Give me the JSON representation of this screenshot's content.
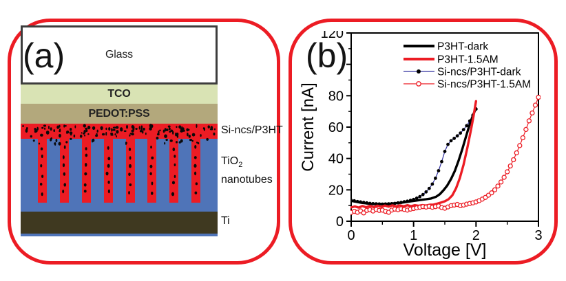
{
  "figure": {
    "background": "#ffffff",
    "frame_color": "#ec1c24"
  },
  "panel_a": {
    "label": "(a)",
    "layers": {
      "glass": "Glass",
      "tco": "TCO",
      "pedot": "PEDOT:PSS"
    },
    "side_labels": {
      "sincs": "Si-ncs/P3HT",
      "tio2_main": "TiO",
      "tio2_sub": "2",
      "nanotubes": "nanotubes",
      "ti": "Ti"
    },
    "colors": {
      "glass": "#ffffff",
      "glass_border": "#3d3d3d",
      "tco": "#d9e3b4",
      "pedot": "#b3a87c",
      "sincs_red": "#ec1c24",
      "tio2_blue": "#4f74b8",
      "ti_dark": "#3f3920",
      "dot_black": "#0a0a0a"
    }
  },
  "panel_b": {
    "label": "(b)"
  },
  "chart_data": {
    "type": "line",
    "title": "",
    "xlabel": "Voltage [V]",
    "ylabel": "Current [nA]",
    "xlim": [
      0,
      3
    ],
    "ylim": [
      0,
      120
    ],
    "x_ticks": [
      0,
      1,
      2,
      3
    ],
    "x_minor_ticks": [
      0.5,
      1.5,
      2.5
    ],
    "y_ticks": [
      0,
      20,
      40,
      60,
      80,
      100,
      120
    ],
    "y_minor_ticks": [
      10,
      30,
      50,
      70,
      90,
      110
    ],
    "y_tick_labels_visible": [
      0,
      20,
      40,
      60,
      80,
      120
    ],
    "y_label_hidden": 100,
    "y_label_clipped_top": 120,
    "grid": false,
    "legend_position": "top-right-inside",
    "axis_color": "#000000",
    "series": [
      {
        "name": "P3HT-dark",
        "style": "line",
        "color": "#000000",
        "width": 3.4,
        "points": [
          [
            0,
            13.0
          ],
          [
            0.08,
            12.4
          ],
          [
            0.16,
            11.8
          ],
          [
            0.24,
            11.4
          ],
          [
            0.32,
            11.1
          ],
          [
            0.4,
            10.9
          ],
          [
            0.48,
            11.0
          ],
          [
            0.56,
            11.0
          ],
          [
            0.64,
            11.2
          ],
          [
            0.72,
            11.5
          ],
          [
            0.8,
            11.8
          ],
          [
            0.88,
            12.2
          ],
          [
            0.96,
            12.7
          ],
          [
            1.04,
            13.2
          ],
          [
            1.12,
            13.6
          ],
          [
            1.2,
            14.0
          ],
          [
            1.28,
            14.5
          ],
          [
            1.36,
            15.6
          ],
          [
            1.42,
            17.2
          ],
          [
            1.48,
            19.8
          ],
          [
            1.54,
            22.8
          ],
          [
            1.6,
            27.0
          ],
          [
            1.66,
            32.0
          ],
          [
            1.72,
            38.5
          ],
          [
            1.78,
            46.0
          ],
          [
            1.84,
            54.0
          ],
          [
            1.9,
            62.0
          ],
          [
            1.95,
            67.5
          ],
          [
            2.0,
            72.0
          ]
        ]
      },
      {
        "name": "P3HT-1.5AM",
        "style": "line",
        "color": "#ec1c24",
        "width": 3.4,
        "points": [
          [
            0,
            8.8
          ],
          [
            0.06,
            9.4
          ],
          [
            0.12,
            8.7
          ],
          [
            0.18,
            9.7
          ],
          [
            0.24,
            8.9
          ],
          [
            0.3,
            9.8
          ],
          [
            0.36,
            9.0
          ],
          [
            0.42,
            9.9
          ],
          [
            0.48,
            9.2
          ],
          [
            0.54,
            10.0
          ],
          [
            0.6,
            9.3
          ],
          [
            0.66,
            10.1
          ],
          [
            0.72,
            9.4
          ],
          [
            0.78,
            10.1
          ],
          [
            0.84,
            9.5
          ],
          [
            0.9,
            10.2
          ],
          [
            0.96,
            9.6
          ],
          [
            1.02,
            10.2
          ],
          [
            1.08,
            9.8
          ],
          [
            1.14,
            10.3
          ],
          [
            1.2,
            10.0
          ],
          [
            1.26,
            10.5
          ],
          [
            1.32,
            10.6
          ],
          [
            1.38,
            11.2
          ],
          [
            1.44,
            11.9
          ],
          [
            1.5,
            12.7
          ],
          [
            1.56,
            14.0
          ],
          [
            1.62,
            16.5
          ],
          [
            1.68,
            21.0
          ],
          [
            1.74,
            27.5
          ],
          [
            1.8,
            36.0
          ],
          [
            1.86,
            46.5
          ],
          [
            1.92,
            58.5
          ],
          [
            1.96,
            67.0
          ],
          [
            2.0,
            76.5
          ]
        ]
      },
      {
        "name": "Si-ncs/P3HT-dark",
        "style": "line+marker",
        "marker": "filled-circle",
        "color": "#2e2e9e",
        "marker_color": "#000000",
        "width": 1.2,
        "marker_r": 2.4,
        "points": [
          [
            0,
            13.4
          ],
          [
            0.05,
            13.0
          ],
          [
            0.1,
            12.6
          ],
          [
            0.15,
            12.3
          ],
          [
            0.2,
            12.0
          ],
          [
            0.25,
            11.7
          ],
          [
            0.3,
            11.4
          ],
          [
            0.35,
            11.2
          ],
          [
            0.4,
            11.1
          ],
          [
            0.45,
            11.0
          ],
          [
            0.5,
            10.9
          ],
          [
            0.55,
            11.0
          ],
          [
            0.6,
            11.1
          ],
          [
            0.65,
            11.2
          ],
          [
            0.7,
            11.4
          ],
          [
            0.75,
            11.7
          ],
          [
            0.8,
            12.0
          ],
          [
            0.85,
            12.4
          ],
          [
            0.9,
            12.8
          ],
          [
            0.95,
            13.3
          ],
          [
            1.0,
            13.9
          ],
          [
            1.05,
            14.7
          ],
          [
            1.1,
            15.7
          ],
          [
            1.15,
            17.0
          ],
          [
            1.2,
            18.7
          ],
          [
            1.25,
            20.9
          ],
          [
            1.3,
            23.7
          ],
          [
            1.35,
            27.4
          ],
          [
            1.4,
            32.2
          ],
          [
            1.45,
            38.0
          ],
          [
            1.5,
            44.5
          ],
          [
            1.55,
            49.0
          ],
          [
            1.6,
            51.3
          ],
          [
            1.65,
            52.8
          ],
          [
            1.7,
            54.4
          ],
          [
            1.75,
            56.2
          ],
          [
            1.8,
            58.4
          ],
          [
            1.85,
            60.9
          ],
          [
            1.9,
            63.9
          ],
          [
            1.95,
            67.6
          ],
          [
            2.0,
            71.5
          ]
        ]
      },
      {
        "name": "Si-ncs/P3HT-1.5AM",
        "style": "line+marker",
        "marker": "open-circle",
        "color": "#ec1c24",
        "marker_color": "#ec1c24",
        "width": 1.2,
        "marker_r": 3.0,
        "points": [
          [
            0,
            5.6
          ],
          [
            0.05,
            6.3
          ],
          [
            0.1,
            5.7
          ],
          [
            0.15,
            6.6
          ],
          [
            0.2,
            5.3
          ],
          [
            0.25,
            6.9
          ],
          [
            0.3,
            7.3
          ],
          [
            0.35,
            6.5
          ],
          [
            0.4,
            7.5
          ],
          [
            0.45,
            6.9
          ],
          [
            0.5,
            7.1
          ],
          [
            0.55,
            6.3
          ],
          [
            0.6,
            5.7
          ],
          [
            0.65,
            7.1
          ],
          [
            0.7,
            7.7
          ],
          [
            0.75,
            7.3
          ],
          [
            0.8,
            7.9
          ],
          [
            0.85,
            7.5
          ],
          [
            0.9,
            7.1
          ],
          [
            0.95,
            7.7
          ],
          [
            1.0,
            8.1
          ],
          [
            1.05,
            8.5
          ],
          [
            1.1,
            8.9
          ],
          [
            1.15,
            9.3
          ],
          [
            1.2,
            9.0
          ],
          [
            1.25,
            9.5
          ],
          [
            1.3,
            8.9
          ],
          [
            1.35,
            9.3
          ],
          [
            1.4,
            9.7
          ],
          [
            1.45,
            8.7
          ],
          [
            1.5,
            8.3
          ],
          [
            1.55,
            9.1
          ],
          [
            1.6,
            9.9
          ],
          [
            1.65,
            10.3
          ],
          [
            1.7,
            10.7
          ],
          [
            1.75,
            9.9
          ],
          [
            1.8,
            10.3
          ],
          [
            1.85,
            10.9
          ],
          [
            1.9,
            11.3
          ],
          [
            1.95,
            11.7
          ],
          [
            2.0,
            12.3
          ],
          [
            2.05,
            13.1
          ],
          [
            2.1,
            14.1
          ],
          [
            2.15,
            15.2
          ],
          [
            2.2,
            16.6
          ],
          [
            2.25,
            18.1
          ],
          [
            2.3,
            20.0
          ],
          [
            2.35,
            22.4
          ],
          [
            2.4,
            25.0
          ],
          [
            2.45,
            28.0
          ],
          [
            2.5,
            31.5
          ],
          [
            2.55,
            35.2
          ],
          [
            2.6,
            39.2
          ],
          [
            2.65,
            43.6
          ],
          [
            2.7,
            48.2
          ],
          [
            2.75,
            53.2
          ],
          [
            2.8,
            58.5
          ],
          [
            2.85,
            64.0
          ],
          [
            2.9,
            69.0
          ],
          [
            2.95,
            74.0
          ],
          [
            3.0,
            79.0
          ]
        ]
      }
    ]
  }
}
